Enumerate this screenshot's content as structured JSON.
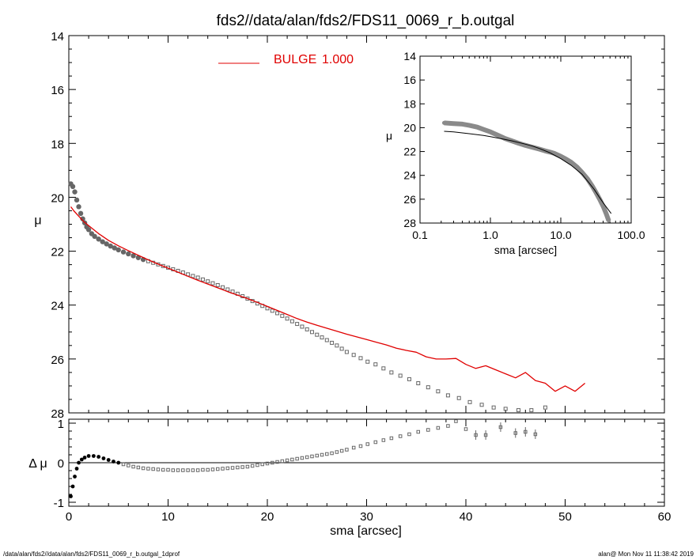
{
  "title": "fds2//data/alan/fds2/FDS11_0069_r_b.outgal",
  "footer": {
    "left": "/data/alan/fds2//data/alan/fds2/FDS11_0069_r_b.outgal_1dprof",
    "right": "alan@  Mon Nov 11 11:38:42 2019"
  },
  "colors": {
    "axes": "#000000",
    "data": "#666666",
    "model": "#e00000"
  },
  "chart_data": [
    {
      "id": "main",
      "type": "scatter",
      "ylabel": "μ",
      "xlim": [
        0,
        60
      ],
      "ylim": [
        28,
        14
      ],
      "yticks": [
        14,
        16,
        18,
        20,
        22,
        24,
        26,
        28
      ],
      "legend": {
        "label": "BULGE",
        "value": "1.000",
        "color": "#e00000",
        "placement": "top-center"
      },
      "series": [
        {
          "role": "observed",
          "x": [
            0.2,
            0.4,
            0.6,
            0.8,
            1.0,
            1.2,
            1.4,
            1.6,
            1.8,
            2.0,
            2.3,
            2.6,
            3.0,
            3.4,
            3.8,
            4.2,
            4.6,
            5.0,
            5.5,
            6.0,
            6.5,
            7.0,
            7.5,
            8.0,
            8.5,
            9.0,
            9.5,
            10.0,
            10.5,
            11.0,
            11.5,
            12.0,
            12.5,
            13.0,
            13.5,
            14.0,
            14.5,
            15.0,
            15.5,
            16.0,
            16.5,
            17.0,
            17.5,
            18.0,
            18.5,
            19.0,
            19.5,
            20.0,
            20.5,
            21.0,
            21.5,
            22.0,
            22.5,
            23.0,
            23.5,
            24.0,
            24.5,
            25.0,
            25.5,
            26.0,
            26.5,
            27.0,
            27.5,
            28.0,
            28.7,
            29.4,
            30.1,
            30.9,
            31.7,
            32.5,
            33.4,
            34.3,
            35.2,
            36.2,
            37.2,
            38.2,
            39.3,
            40.4,
            41.6,
            42.8,
            44.0,
            45.3,
            46.6,
            48.0
          ],
          "y": [
            19.5,
            19.6,
            19.8,
            20.1,
            20.35,
            20.6,
            20.8,
            20.95,
            21.1,
            21.2,
            21.35,
            21.45,
            21.55,
            21.65,
            21.73,
            21.81,
            21.88,
            21.95,
            22.03,
            22.1,
            22.17,
            22.24,
            22.31,
            22.37,
            22.43,
            22.49,
            22.55,
            22.61,
            22.67,
            22.73,
            22.79,
            22.86,
            22.92,
            22.98,
            23.05,
            23.12,
            23.19,
            23.26,
            23.34,
            23.42,
            23.5,
            23.58,
            23.67,
            23.76,
            23.85,
            23.94,
            24.03,
            24.12,
            24.21,
            24.3,
            24.4,
            24.5,
            24.6,
            24.7,
            24.8,
            24.9,
            25.0,
            25.1,
            25.2,
            25.3,
            25.4,
            25.5,
            25.62,
            25.74,
            25.85,
            25.97,
            26.1,
            26.2,
            26.35,
            26.5,
            26.62,
            26.75,
            26.9,
            27.05,
            27.2,
            27.35,
            27.45,
            27.6,
            27.7,
            27.8,
            27.85,
            27.9,
            27.9,
            27.8
          ]
        },
        {
          "role": "model",
          "name": "BULGE",
          "x": [
            0.2,
            0.5,
            1.0,
            1.5,
            2.0,
            3.0,
            4.0,
            5.0,
            6.0,
            7.0,
            8.0,
            9.0,
            10.0,
            11.0,
            12.0,
            13.0,
            14.0,
            15.0,
            16.0,
            17.0,
            18.0,
            19.0,
            20.0,
            21.0,
            22.0,
            23.0,
            24.0,
            25.0,
            26.0,
            27.0,
            28.0,
            29.0,
            30.0,
            31.0,
            32.0,
            33.0,
            34.0,
            35.0,
            36.0,
            37.0,
            38.0,
            39.0,
            40.0,
            41.0,
            42.0,
            43.0,
            44.0,
            45.0,
            46.0,
            47.0,
            48.0,
            49.0,
            50.0,
            51.0,
            52.0
          ],
          "y": [
            20.35,
            20.5,
            20.7,
            20.9,
            21.05,
            21.35,
            21.6,
            21.8,
            21.98,
            22.15,
            22.32,
            22.48,
            22.63,
            22.78,
            22.93,
            23.08,
            23.22,
            23.36,
            23.5,
            23.63,
            23.76,
            23.9,
            24.05,
            24.2,
            24.35,
            24.5,
            24.63,
            24.75,
            24.86,
            24.97,
            25.08,
            25.18,
            25.28,
            25.38,
            25.48,
            25.6,
            25.68,
            25.75,
            25.92,
            26.0,
            26.0,
            25.98,
            26.2,
            26.35,
            26.25,
            26.4,
            26.55,
            26.7,
            26.5,
            26.8,
            26.9,
            27.2,
            27.0,
            27.2,
            26.9
          ]
        }
      ]
    },
    {
      "id": "residual",
      "type": "scatter",
      "ylabel": "Δ μ",
      "xlabel": "sma [arcsec]",
      "xlim": [
        0,
        60
      ],
      "ylim": [
        -1.1,
        1.1
      ],
      "xticks": [
        0,
        10,
        20,
        30,
        40,
        50,
        60
      ],
      "yticks": [
        -1,
        0,
        1
      ],
      "zero_line": true,
      "series": [
        {
          "role": "residual",
          "x": [
            0.2,
            0.4,
            0.6,
            0.8,
            1.0,
            1.3,
            1.6,
            2.0,
            2.5,
            3.0,
            3.5,
            4.0,
            4.5,
            5.0,
            5.5,
            6.0,
            6.5,
            7.0,
            7.5,
            8.0,
            8.5,
            9.0,
            9.5,
            10.0,
            10.5,
            11.0,
            11.5,
            12.0,
            12.5,
            13.0,
            13.5,
            14.0,
            14.5,
            15.0,
            15.5,
            16.0,
            16.5,
            17.0,
            17.5,
            18.0,
            18.5,
            19.0,
            19.5,
            20.0,
            20.5,
            21.0,
            21.5,
            22.0,
            22.5,
            23.0,
            23.5,
            24.0,
            24.5,
            25.0,
            25.5,
            26.0,
            26.5,
            27.0,
            27.5,
            28.0,
            28.7,
            29.4,
            30.1,
            30.9,
            31.7,
            32.5,
            33.4,
            34.3,
            35.2,
            36.2,
            37.2,
            38.2,
            39.0,
            40.0,
            41.0,
            42.0,
            43.5,
            45.0,
            46.0,
            47.0
          ],
          "y": [
            -0.85,
            -0.6,
            -0.35,
            -0.15,
            0.0,
            0.08,
            0.13,
            0.17,
            0.17,
            0.15,
            0.11,
            0.07,
            0.03,
            0.0,
            -0.04,
            -0.07,
            -0.1,
            -0.12,
            -0.14,
            -0.15,
            -0.16,
            -0.17,
            -0.18,
            -0.18,
            -0.19,
            -0.19,
            -0.19,
            -0.19,
            -0.19,
            -0.19,
            -0.18,
            -0.18,
            -0.17,
            -0.16,
            -0.15,
            -0.14,
            -0.13,
            -0.12,
            -0.11,
            -0.1,
            -0.08,
            -0.06,
            -0.04,
            -0.02,
            0.0,
            0.02,
            0.04,
            0.06,
            0.08,
            0.1,
            0.12,
            0.14,
            0.16,
            0.18,
            0.2,
            0.22,
            0.24,
            0.27,
            0.3,
            0.33,
            0.38,
            0.42,
            0.47,
            0.52,
            0.57,
            0.62,
            0.67,
            0.72,
            0.78,
            0.83,
            0.88,
            0.93,
            1.05,
            0.85,
            0.7,
            0.7,
            0.9,
            0.75,
            0.78,
            0.72
          ]
        }
      ]
    },
    {
      "id": "inset",
      "type": "scatter",
      "ylabel": "μ",
      "xlabel": "sma [arcsec]",
      "xscale": "log",
      "xlim": [
        0.1,
        100
      ],
      "ylim": [
        28,
        14
      ],
      "xticks": [
        "0.1",
        "1.0",
        "10.0",
        "100.0"
      ],
      "yticks": [
        14,
        16,
        18,
        20,
        22,
        24,
        26,
        28
      ],
      "series": [
        {
          "role": "observed",
          "x": [
            0.22,
            0.3,
            0.4,
            0.5,
            0.65,
            0.8,
            1.0,
            1.3,
            1.6,
            2.0,
            2.5,
            3.0,
            4.0,
            5.0,
            6.0,
            7.0,
            8.0,
            10.0,
            12.0,
            14.0,
            17.0,
            20.0,
            24.0,
            28.0,
            32.0,
            36.0,
            40.0,
            44.0,
            48.0
          ],
          "y": [
            19.6,
            19.65,
            19.7,
            19.8,
            19.95,
            20.15,
            20.35,
            20.65,
            20.9,
            21.1,
            21.3,
            21.45,
            21.65,
            21.8,
            21.95,
            22.05,
            22.15,
            22.4,
            22.65,
            22.9,
            23.3,
            23.75,
            24.3,
            24.9,
            25.5,
            26.05,
            26.6,
            27.2,
            27.8
          ]
        },
        {
          "role": "model",
          "x": [
            0.22,
            0.3,
            0.5,
            0.8,
            1.0,
            1.5,
            2.0,
            3.0,
            4.0,
            5.0,
            7.0,
            10.0,
            14.0,
            20.0,
            25.0,
            30.0,
            35.0,
            40.0,
            45.0,
            52.0
          ],
          "y": [
            20.3,
            20.35,
            20.5,
            20.65,
            20.75,
            20.95,
            21.1,
            21.35,
            21.55,
            21.75,
            22.1,
            22.6,
            23.15,
            23.9,
            24.6,
            25.2,
            25.8,
            26.3,
            26.7,
            27.2
          ]
        }
      ]
    }
  ]
}
